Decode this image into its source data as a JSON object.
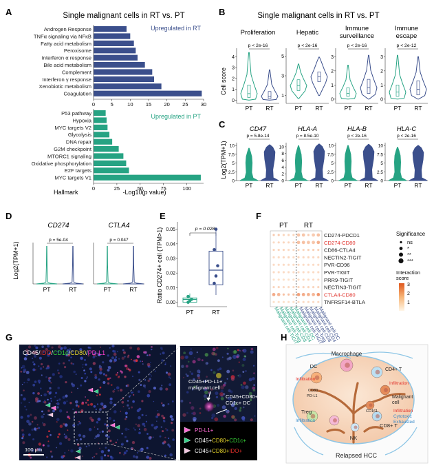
{
  "colors": {
    "rt": "#3b4f8c",
    "pt": "#26a383",
    "red": "#e0302a",
    "orange": "#f0a05a",
    "grey": "#555555"
  },
  "panel_labels": [
    "A",
    "B",
    "C",
    "D",
    "E",
    "F",
    "G",
    "H"
  ],
  "panelA": {
    "title": "Single malignant cells in RT vs. PT",
    "rt_note": "Upregulated in RT",
    "pt_note": "Upregulated in PT",
    "ylabel": "Hallmark",
    "xlabel": "-Log10(p value)"
  },
  "panelB": {
    "title": "Single malignant cells in RT vs. PT",
    "ylabel": "Cell score",
    "groups": [
      "PT",
      "RT"
    ]
  },
  "panelC": {
    "ylabel": "Log2(TPM+1)"
  },
  "panelD": {
    "ylabel": "Log2(TPM+1)"
  },
  "panelE": {
    "ylabel": "Ratio CD274+ cell (TPM>1)",
    "pvalue": "p = 0.028",
    "groups": [
      "PT",
      "RT"
    ]
  },
  "panelF": {
    "col_groups": [
      "PT",
      "RT"
    ],
    "significance_title": "Significance",
    "significance_levels": [
      "ns",
      "*",
      "**",
      "***"
    ],
    "interaction_title": "Interaction score",
    "color_ticks": [
      "3",
      "2",
      "1"
    ]
  },
  "panelG": {
    "channels": [
      {
        "text": "CD45/",
        "color": "#ffffff"
      },
      {
        "text": "IDO",
        "color": "#e0302a"
      },
      {
        "text": "/",
        "color": "#ffffff"
      },
      {
        "text": "CD1c",
        "color": "#37d437"
      },
      {
        "text": "/",
        "color": "#ffffff"
      },
      {
        "text": "CD80",
        "color": "#e8d62a"
      },
      {
        "text": "/",
        "color": "#ffffff"
      },
      {
        "text": "PD-L1",
        "color": "#ff3fd0"
      }
    ],
    "scalebar": "100 μm",
    "callout1": [
      "CD45+PD-L1+",
      "malignant cell"
    ],
    "callout2": [
      "CD45+CD80+",
      "CD1c+ DC"
    ],
    "legend": [
      {
        "marker": "#ff6ad5",
        "parts": [
          {
            "t": "PD-L1+",
            "c": "#ff6ad5"
          }
        ]
      },
      {
        "marker": "#3ad28a",
        "parts": [
          {
            "t": "CD45+",
            "c": "#ffffff"
          },
          {
            "t": "CD80+",
            "c": "#e8d62a"
          },
          {
            "t": "CD1c+",
            "c": "#37d437"
          }
        ]
      },
      {
        "marker": "#f2c6de",
        "parts": [
          {
            "t": "CD45+",
            "c": "#ffffff"
          },
          {
            "t": "CD80+",
            "c": "#e8d62a"
          },
          {
            "t": "IDO+",
            "c": "#e0302a"
          }
        ]
      }
    ]
  },
  "panelH": {
    "caption": "Relapsed HCC",
    "labels": {
      "macrophage": "Macrophage",
      "dc": "DC",
      "cd80": "CD80",
      "pdl1": "PD-L1",
      "cd4": "CD4+ T",
      "malignant": "Malignant cell",
      "treg": "Treg",
      "nk": "NK",
      "cd161": "CD161",
      "cd8": "CD8+ T",
      "infiltration": "Infiltration",
      "cytotoxic": "Cytotoxic",
      "exhausted": "Exhausted"
    }
  },
  "chart_data": [
    {
      "panel": "A",
      "type": "bar",
      "orientation": "horizontal",
      "xlabel": "-Log10(p value)",
      "ylabel": "Hallmark",
      "series": [
        {
          "name": "Upregulated in RT",
          "categories": [
            "Androgen Response",
            "TNFα signaling via NFκB",
            "Fatty acid metabolism",
            "Peroxisome",
            "Interferon α response",
            "Bile acid metabolism",
            "Complement",
            "Interferon γ response",
            "Xenobiotic metabolism",
            "Coagulation"
          ],
          "values": [
            9,
            10,
            11,
            11.5,
            12,
            14,
            16,
            16.5,
            18.5,
            29.5
          ],
          "xticks": [
            0,
            5,
            10,
            15,
            20,
            25,
            30
          ],
          "xlim": [
            0,
            30
          ]
        },
        {
          "name": "Upregulated in PT",
          "categories": [
            "P53 pathway",
            "Hypoxia",
            "MYC targets V2",
            "Glycolysis",
            "DNA repair",
            "G2M checkpoint",
            "MTORC1 signaling",
            "Oxidative phosphorylation",
            "E2F targets",
            "MYC targets V1"
          ],
          "values": [
            13,
            14,
            15,
            17,
            20,
            27,
            32,
            35,
            38,
            115
          ],
          "xticks": [
            0,
            25,
            50,
            75,
            100
          ],
          "xlim": [
            0,
            118
          ]
        }
      ]
    },
    {
      "panel": "B",
      "type": "violin",
      "ylabel": "Cell score",
      "groups": [
        "PT",
        "RT"
      ],
      "facets": [
        {
          "title": "Proliferation",
          "pvalue": "p < 2e-16",
          "yticks": [
            0,
            1,
            2,
            3,
            4
          ],
          "ylim": [
            -0.3,
            4.8
          ],
          "PT": {
            "min": 0,
            "max": 4.4,
            "median": 0.6,
            "q1": 0.25,
            "q3": 1.4
          },
          "RT": {
            "min": 0,
            "max": 2.8,
            "median": 0.35,
            "q1": 0.15,
            "q3": 0.8
          }
        },
        {
          "title": "Hepatic",
          "pvalue": "p < 2e-16",
          "yticks": [
            1,
            3,
            5
          ],
          "ylim": [
            0.2,
            5.8
          ],
          "PT": {
            "min": 0.7,
            "max": 4.2,
            "median": 2.0,
            "q1": 1.5,
            "q3": 2.6
          },
          "RT": {
            "min": 1.0,
            "max": 4.9,
            "median": 2.9,
            "q1": 2.4,
            "q3": 3.4
          }
        },
        {
          "title": "Immune surveillance",
          "pvalue": "p < 2e-16",
          "yticks": [
            0,
            1,
            2,
            3
          ],
          "ylim": [
            -0.3,
            3.6
          ],
          "PT": {
            "min": 0,
            "max": 2.4,
            "median": 0.4,
            "q1": 0.2,
            "q3": 0.8
          },
          "RT": {
            "min": 0,
            "max": 3.1,
            "median": 0.8,
            "q1": 0.4,
            "q3": 1.4
          }
        },
        {
          "title": "Immune escape",
          "pvalue": "p < 2e-12",
          "yticks": [
            0,
            1,
            2,
            3
          ],
          "ylim": [
            -0.3,
            3.6
          ],
          "PT": {
            "min": 0,
            "max": 3.1,
            "median": 0.5,
            "q1": 0.2,
            "q3": 1.0
          },
          "RT": {
            "min": 0,
            "max": 3.0,
            "median": 0.7,
            "q1": 0.3,
            "q3": 1.3
          }
        }
      ]
    },
    {
      "panel": "C",
      "type": "violin",
      "ylabel": "Log2(TPM+1)",
      "groups": [
        "PT",
        "RT"
      ],
      "facets": [
        {
          "title": "CD47",
          "pvalue": "p = 5.8e-14",
          "yticks": [
            0,
            2.5,
            5,
            7.5,
            10
          ],
          "ylim": [
            0,
            10.8
          ],
          "PT": {
            "max": 9.2
          },
          "RT": {
            "max": 10.2
          }
        },
        {
          "title": "HLA-A",
          "pvalue": "p = 8.5e-10",
          "yticks": [
            0,
            2,
            4,
            6,
            8,
            10
          ],
          "ylim": [
            0,
            11.2
          ],
          "PT": {
            "max": 10.3
          },
          "RT": {
            "max": 10.8
          }
        },
        {
          "title": "HLA-B",
          "pvalue": "p < 2e-16",
          "yticks": [
            0,
            2.5,
            5,
            7.5,
            10
          ],
          "ylim": [
            0,
            10.8
          ],
          "PT": {
            "max": 10.0
          },
          "RT": {
            "max": 10.3
          }
        },
        {
          "title": "HLA-C",
          "pvalue": "p < 2e-16",
          "yticks": [
            0,
            2.5,
            5,
            7.5,
            10
          ],
          "ylim": [
            0,
            10.8
          ],
          "PT": {
            "max": 9.5
          },
          "RT": {
            "max": 10.0
          }
        }
      ]
    },
    {
      "panel": "D",
      "type": "violin",
      "ylabel": "Log2(TPM+1)",
      "groups": [
        "PT",
        "RT"
      ],
      "facets": [
        {
          "title": "CD274",
          "pvalue": "p = 5e-04",
          "yticks": [
            0,
            5,
            10,
            15,
            20
          ],
          "ylim": [
            0,
            22
          ],
          "PT": {
            "max": 20
          },
          "RT": {
            "max": 20
          }
        },
        {
          "title": "CTLA4",
          "pvalue": "p = 0.047",
          "yticks": [
            0,
            5,
            10,
            15,
            20
          ],
          "ylim": [
            0,
            22
          ],
          "PT": {
            "max": 20
          },
          "RT": {
            "max": 20
          }
        }
      ]
    },
    {
      "panel": "E",
      "type": "box",
      "ylabel": "Ratio CD274+ cell (TPM>1)",
      "groups": [
        "PT",
        "RT"
      ],
      "pvalue": "p = 0.028",
      "yticks": [
        0,
        0.01,
        0.02,
        0.03,
        0.04,
        0.05
      ],
      "ylim": [
        -0.003,
        0.055
      ],
      "PT": {
        "min": 0,
        "q1": 0,
        "median": 0.002,
        "q3": 0.003,
        "max": 0.006,
        "points": [
          0.0,
          0.001,
          0.002,
          0.004
        ]
      },
      "RT": {
        "min": 0.005,
        "q1": 0.012,
        "median": 0.022,
        "q3": 0.035,
        "max": 0.05,
        "points": [
          0.013,
          0.018,
          0.025,
          0.036,
          0.05
        ]
      }
    },
    {
      "panel": "F",
      "type": "dot",
      "rows": [
        "CD274-PDCD1",
        "CD274-CD80",
        "CD86-CTLA4",
        "NECTIN2-TIGIT",
        "PVR-CD96",
        "PVR-TIGIT",
        "PRR9-TIGIT",
        "NECTIN3-TIGIT",
        "CTLA4-CD80",
        "TNFRSF14-BTLA"
      ],
      "highlighted_rows": [
        "CD274-CD80",
        "CTLA4-CD80"
      ],
      "columns": [
        "Malignant cell-TIGIT",
        "Malignant cell-Treg",
        "Malignant cell-CD8",
        "Malignant cell-CD4",
        "Malignant cell-DC",
        "Malignant cell-TIGIT",
        "Malignant cell-Treg",
        "Malignant cell-CD8",
        "Malignant cell-CD4",
        "Malignant cell-DC"
      ],
      "column_groups": [
        "PT",
        "PT",
        "PT",
        "PT",
        "PT",
        "RT",
        "RT",
        "RT",
        "RT",
        "RT"
      ],
      "size_levels": [
        "ns",
        "*",
        "**",
        "***"
      ],
      "color_scale": [
        0,
        3
      ],
      "values": [
        [
          0.8,
          0.8,
          0.6,
          0.6,
          0.6,
          0.9,
          0.9,
          0.8,
          0.8,
          1.0
        ],
        [
          0.5,
          0.6,
          0.6,
          0.6,
          0.7,
          1.0,
          1.0,
          0.9,
          0.9,
          1.3
        ],
        [
          0.6,
          0.6,
          0.6,
          0.5,
          0.5,
          0.6,
          0.6,
          0.7,
          0.7,
          0.7
        ],
        [
          0.5,
          0.5,
          0.6,
          0.6,
          0.5,
          0.6,
          0.6,
          0.6,
          0.6,
          0.6
        ],
        [
          0.5,
          0.5,
          0.5,
          0.5,
          0.5,
          0.5,
          0.5,
          0.5,
          0.5,
          0.5
        ],
        [
          0.5,
          0.5,
          0.5,
          0.5,
          0.5,
          0.5,
          0.5,
          0.5,
          0.5,
          0.5
        ],
        [
          0.4,
          0.4,
          0.4,
          0.4,
          0.4,
          0.5,
          0.5,
          0.5,
          0.5,
          0.5
        ],
        [
          0.6,
          0.6,
          0.5,
          0.5,
          0.5,
          0.6,
          0.6,
          0.6,
          0.6,
          0.6
        ],
        [
          1.4,
          1.2,
          1.0,
          1.0,
          1.0,
          1.6,
          1.4,
          1.3,
          1.2,
          1.8
        ],
        [
          0.4,
          0.4,
          0.4,
          0.4,
          0.4,
          0.5,
          0.5,
          0.5,
          0.5,
          0.5
        ]
      ],
      "sizes": [
        [
          0,
          0,
          0,
          0,
          0,
          1,
          1,
          0,
          1,
          1
        ],
        [
          0,
          0,
          0,
          0,
          0,
          1,
          1,
          1,
          1,
          1
        ],
        [
          0,
          0,
          0,
          0,
          0,
          0,
          0,
          0,
          0,
          0
        ],
        [
          0,
          0,
          0,
          0,
          0,
          0,
          0,
          0,
          0,
          0
        ],
        [
          0,
          0,
          0,
          0,
          0,
          0,
          0,
          0,
          0,
          0
        ],
        [
          0,
          0,
          0,
          0,
          0,
          0,
          0,
          0,
          0,
          0
        ],
        [
          0,
          0,
          0,
          0,
          0,
          0,
          0,
          0,
          0,
          0
        ],
        [
          0,
          0,
          0,
          0,
          0,
          0,
          0,
          0,
          0,
          0
        ],
        [
          1,
          1,
          0,
          0,
          0,
          1,
          1,
          1,
          1,
          1
        ],
        [
          0,
          0,
          0,
          0,
          0,
          0,
          0,
          0,
          0,
          0
        ]
      ]
    }
  ]
}
